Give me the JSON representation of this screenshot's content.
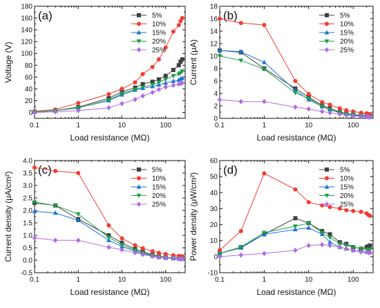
{
  "figure": {
    "series_colors": {
      "5%": "#404040",
      "10%": "#f03c32",
      "15%": "#1a73d6",
      "20%": "#1e9e4a",
      "25%": "#b06be0"
    },
    "series_markers": {
      "5%": "square",
      "10%": "circle",
      "15%": "triangle-up",
      "20%": "triangle-down",
      "25%": "diamond"
    }
  },
  "chart_data": [
    {
      "type": "line",
      "panel_label": "(a)",
      "xlabel": "Load resistance (MΩ)",
      "ylabel": "Voltage (V)",
      "x_scale": "log",
      "xlim": [
        0.1,
        280
      ],
      "ylim": [
        -10,
        180
      ],
      "x_ticks": [
        0.1,
        1,
        10,
        100
      ],
      "x_tick_labels": [
        "0.1",
        "1",
        "10",
        "100"
      ],
      "y_ticks": [
        0,
        20,
        40,
        60,
        80,
        100,
        120,
        140,
        160,
        180
      ],
      "y_tick_labels": [
        "0",
        "20",
        "40",
        "60",
        "80",
        "100",
        "120",
        "140",
        "160",
        "180"
      ],
      "legend_position": "top-right",
      "x": [
        0.1,
        0.3,
        1,
        5,
        10,
        20,
        30,
        50,
        70,
        100,
        150,
        200,
        220,
        240
      ],
      "series": [
        {
          "name": "5%",
          "values": [
            1,
            3,
            9,
            24,
            35,
            42,
            48,
            52,
            56,
            62,
            72,
            80,
            86,
            90
          ]
        },
        {
          "name": "10%",
          "values": [
            2,
            5,
            16,
            31,
            40,
            51,
            65,
            77,
            90,
            110,
            137,
            148,
            155,
            160
          ]
        },
        {
          "name": "15%",
          "values": [
            1,
            3,
            8,
            20,
            30,
            38,
            41,
            44,
            47,
            50,
            53,
            55,
            57,
            58
          ]
        },
        {
          "name": "20%",
          "values": [
            1,
            3,
            8,
            21,
            32,
            39,
            43,
            47,
            51,
            56,
            62,
            65,
            67,
            70
          ]
        },
        {
          "name": "25%",
          "values": [
            0,
            1,
            3,
            8,
            15,
            22,
            28,
            34,
            39,
            43,
            46,
            48,
            49,
            50
          ]
        }
      ]
    },
    {
      "type": "line",
      "panel_label": "(b)",
      "xlabel": "Load resistance (MΩ)",
      "ylabel": "Current (μA)",
      "x_scale": "log",
      "xlim": [
        0.1,
        280
      ],
      "ylim": [
        0,
        18
      ],
      "x_ticks": [
        0.1,
        1,
        10,
        100
      ],
      "x_tick_labels": [
        "0.1",
        "1",
        "10",
        "100"
      ],
      "y_ticks": [
        0,
        2,
        4,
        6,
        8,
        10,
        12,
        14,
        16,
        18
      ],
      "y_tick_labels": [
        "0",
        "2",
        "4",
        "6",
        "8",
        "10",
        "12",
        "14",
        "16",
        "18"
      ],
      "legend_position": "top-right",
      "x": [
        0.1,
        0.3,
        1,
        5,
        10,
        20,
        30,
        50,
        70,
        100,
        150,
        200,
        220,
        240
      ],
      "series": [
        {
          "name": "5%",
          "values": [
            10.9,
            10.6,
            8.0,
            4.8,
            3.4,
            2.1,
            1.6,
            1.0,
            0.8,
            0.6,
            0.5,
            0.4,
            0.4,
            0.4
          ]
        },
        {
          "name": "10%",
          "values": [
            16.0,
            15.3,
            15.0,
            6.0,
            3.9,
            2.6,
            2.2,
            1.6,
            1.3,
            1.1,
            0.9,
            0.8,
            0.7,
            0.7
          ]
        },
        {
          "name": "15%",
          "values": [
            10.9,
            10.7,
            9.0,
            4.5,
            3.0,
            1.9,
            1.4,
            0.9,
            0.7,
            0.5,
            0.4,
            0.3,
            0.3,
            0.3
          ]
        },
        {
          "name": "20%",
          "values": [
            10.0,
            9.3,
            7.9,
            4.1,
            3.2,
            1.9,
            1.4,
            0.9,
            0.7,
            0.6,
            0.4,
            0.3,
            0.3,
            0.3
          ]
        },
        {
          "name": "25%",
          "values": [
            3.0,
            2.7,
            2.7,
            1.8,
            1.5,
            1.1,
            0.9,
            0.7,
            0.5,
            0.4,
            0.3,
            0.3,
            0.2,
            0.2
          ]
        }
      ]
    },
    {
      "type": "line",
      "panel_label": "(c)",
      "xlabel": "Load resistance (MΩ)",
      "ylabel": "Current density (μA/cm²)",
      "x_scale": "log",
      "xlim": [
        0.1,
        280
      ],
      "ylim": [
        -0.5,
        4.0
      ],
      "x_ticks": [
        0.1,
        1,
        10,
        100
      ],
      "x_tick_labels": [
        "0.1",
        "1",
        "10",
        "100"
      ],
      "y_ticks": [
        -0.5,
        0.0,
        0.5,
        1.0,
        1.5,
        2.0,
        2.5,
        3.0,
        3.5,
        4.0
      ],
      "y_tick_labels": [
        "-0.5",
        "0.0",
        "0.5",
        "1.0",
        "1.5",
        "2.0",
        "2.5",
        "3.0",
        "3.5",
        "4.0"
      ],
      "legend_position": "top-right",
      "x": [
        0.1,
        0.3,
        1,
        5,
        10,
        20,
        30,
        50,
        70,
        100,
        150,
        200,
        220,
        240
      ],
      "series": [
        {
          "name": "5%",
          "values": [
            2.3,
            2.2,
            1.65,
            1.0,
            0.7,
            0.45,
            0.35,
            0.22,
            0.16,
            0.12,
            0.1,
            0.08,
            0.08,
            0.08
          ]
        },
        {
          "name": "10%",
          "values": [
            3.72,
            3.58,
            3.5,
            1.4,
            0.88,
            0.6,
            0.48,
            0.36,
            0.3,
            0.25,
            0.2,
            0.17,
            0.16,
            0.16
          ]
        },
        {
          "name": "15%",
          "values": [
            1.96,
            1.9,
            1.6,
            0.8,
            0.55,
            0.36,
            0.27,
            0.17,
            0.12,
            0.09,
            0.07,
            0.06,
            0.05,
            0.05
          ]
        },
        {
          "name": "20%",
          "values": [
            2.33,
            2.2,
            1.85,
            0.92,
            0.62,
            0.4,
            0.3,
            0.19,
            0.14,
            0.11,
            0.09,
            0.07,
            0.06,
            0.06
          ]
        },
        {
          "name": "25%",
          "values": [
            0.9,
            0.8,
            0.8,
            0.52,
            0.42,
            0.3,
            0.23,
            0.16,
            0.12,
            0.1,
            0.08,
            0.06,
            0.05,
            0.05
          ]
        }
      ]
    },
    {
      "type": "line",
      "panel_label": "(d)",
      "xlabel": "Load resistance (MΩ)",
      "ylabel": "Power density (μW/cm²)",
      "x_scale": "log",
      "xlim": [
        0.1,
        280
      ],
      "ylim": [
        -10,
        60
      ],
      "x_ticks": [
        0.1,
        1,
        10,
        100
      ],
      "x_tick_labels": [
        "0.1",
        "1",
        "10",
        "100"
      ],
      "y_ticks": [
        -10,
        0,
        10,
        20,
        30,
        40,
        50,
        60
      ],
      "y_tick_labels": [
        "-10",
        "0",
        "10",
        "20",
        "30",
        "40",
        "50",
        "60"
      ],
      "legend_position": "top-right",
      "x": [
        0.1,
        0.3,
        1,
        5,
        10,
        20,
        30,
        50,
        70,
        100,
        150,
        200,
        220,
        240
      ],
      "series": [
        {
          "name": "5%",
          "values": [
            2,
            6,
            14,
            24,
            21,
            16,
            14,
            9,
            8,
            6,
            5,
            6,
            6.5,
            7
          ]
        },
        {
          "name": "10%",
          "values": [
            4,
            16,
            52,
            42,
            34,
            32,
            31,
            30,
            29,
            28.5,
            28,
            27,
            26,
            25.5
          ]
        },
        {
          "name": "15%",
          "values": [
            2,
            5.5,
            14,
            17,
            18,
            14,
            9,
            6,
            5,
            4,
            3.5,
            3,
            3,
            3
          ]
        },
        {
          "name": "20%",
          "values": [
            2,
            6,
            15,
            19,
            21,
            15,
            12,
            8,
            7,
            6,
            5,
            4.5,
            4.5,
            4.5
          ]
        },
        {
          "name": "25%",
          "values": [
            0,
            1,
            2,
            4,
            7,
            7.5,
            7,
            6,
            5,
            4,
            3,
            3,
            2.5,
            2.5
          ]
        }
      ]
    }
  ]
}
